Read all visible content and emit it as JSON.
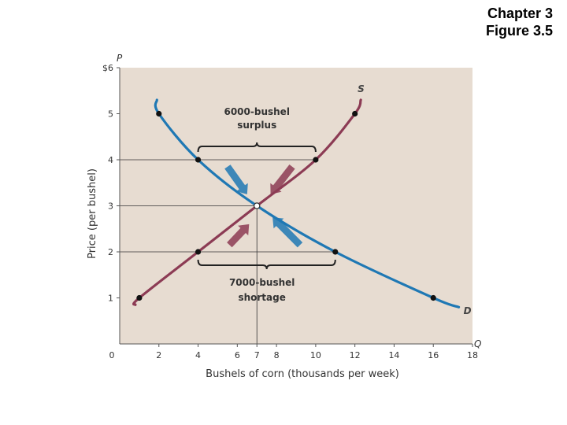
{
  "header": {
    "chapter": "Chapter 3",
    "figure": "Figure 3.5"
  },
  "colors": {
    "panel": "#e7dcd1",
    "demand": "#1f78b4",
    "supply": "#8c3b54",
    "guide": "#333333"
  },
  "chart_data": {
    "type": "line",
    "xlabel": "Bushels of corn (thousands per week)",
    "ylabel": "Price (per bushel)",
    "x_axis_letter": "Q",
    "y_axis_letter": "P",
    "xlim": [
      0,
      18
    ],
    "ylim": [
      0,
      6
    ],
    "x_ticks": [
      {
        "value": 0,
        "label": "0"
      },
      {
        "value": 2,
        "label": "2"
      },
      {
        "value": 4,
        "label": "4"
      },
      {
        "value": 6,
        "label": "6"
      },
      {
        "value": 7,
        "label": "7"
      },
      {
        "value": 8,
        "label": "8"
      },
      {
        "value": 10,
        "label": "10"
      },
      {
        "value": 12,
        "label": "12"
      },
      {
        "value": 14,
        "label": "14"
      },
      {
        "value": 16,
        "label": "16"
      },
      {
        "value": 18,
        "label": "18"
      }
    ],
    "y_ticks": [
      {
        "value": 1,
        "label": "1"
      },
      {
        "value": 2,
        "label": "2"
      },
      {
        "value": 3,
        "label": "3"
      },
      {
        "value": 4,
        "label": "4"
      },
      {
        "value": 5,
        "label": "5"
      },
      {
        "value": 6,
        "label": "$6"
      }
    ],
    "series": [
      {
        "name": "D",
        "curve": [
          [
            1.9,
            5.3
          ],
          [
            2,
            5
          ],
          [
            4,
            4
          ],
          [
            7,
            3
          ],
          [
            11,
            2
          ],
          [
            16,
            1
          ],
          [
            17.3,
            0.8
          ]
        ],
        "points": [
          [
            2,
            5
          ],
          [
            4,
            4
          ],
          [
            11,
            2
          ],
          [
            16,
            1
          ]
        ]
      },
      {
        "name": "S",
        "curve": [
          [
            0.8,
            0.85
          ],
          [
            1,
            1
          ],
          [
            4,
            2
          ],
          [
            7,
            3
          ],
          [
            10,
            4
          ],
          [
            12,
            5
          ],
          [
            12.3,
            5.3
          ]
        ],
        "points": [
          [
            1,
            1
          ],
          [
            4,
            2
          ],
          [
            10,
            4
          ],
          [
            12,
            5
          ]
        ]
      }
    ],
    "equilibrium": {
      "x": 7,
      "y": 3
    },
    "guide_lines": [
      {
        "y": 4,
        "x_to": 10
      },
      {
        "y": 3,
        "x_to": 7
      },
      {
        "y": 2,
        "x_to": 11
      },
      {
        "x": 7,
        "y_to": 3
      }
    ],
    "annotations": [
      {
        "id": "surplus",
        "line1": "6000-bushel",
        "line2": "surplus",
        "x_from": 4,
        "x_to": 10,
        "y": 4
      },
      {
        "id": "shortage",
        "line1": "7000-bushel",
        "line2": "shortage",
        "x_from": 4,
        "x_to": 11,
        "y": 2
      }
    ],
    "arrows": [
      {
        "color": "demand",
        "from": [
          5.5,
          3.85
        ],
        "to": [
          6.5,
          3.25
        ]
      },
      {
        "color": "supply",
        "from": [
          8.8,
          3.85
        ],
        "to": [
          7.7,
          3.25
        ]
      },
      {
        "color": "supply",
        "from": [
          5.6,
          2.15
        ],
        "to": [
          6.6,
          2.6
        ]
      },
      {
        "color": "demand",
        "from": [
          9.2,
          2.15
        ],
        "to": [
          7.8,
          2.75
        ]
      }
    ]
  }
}
